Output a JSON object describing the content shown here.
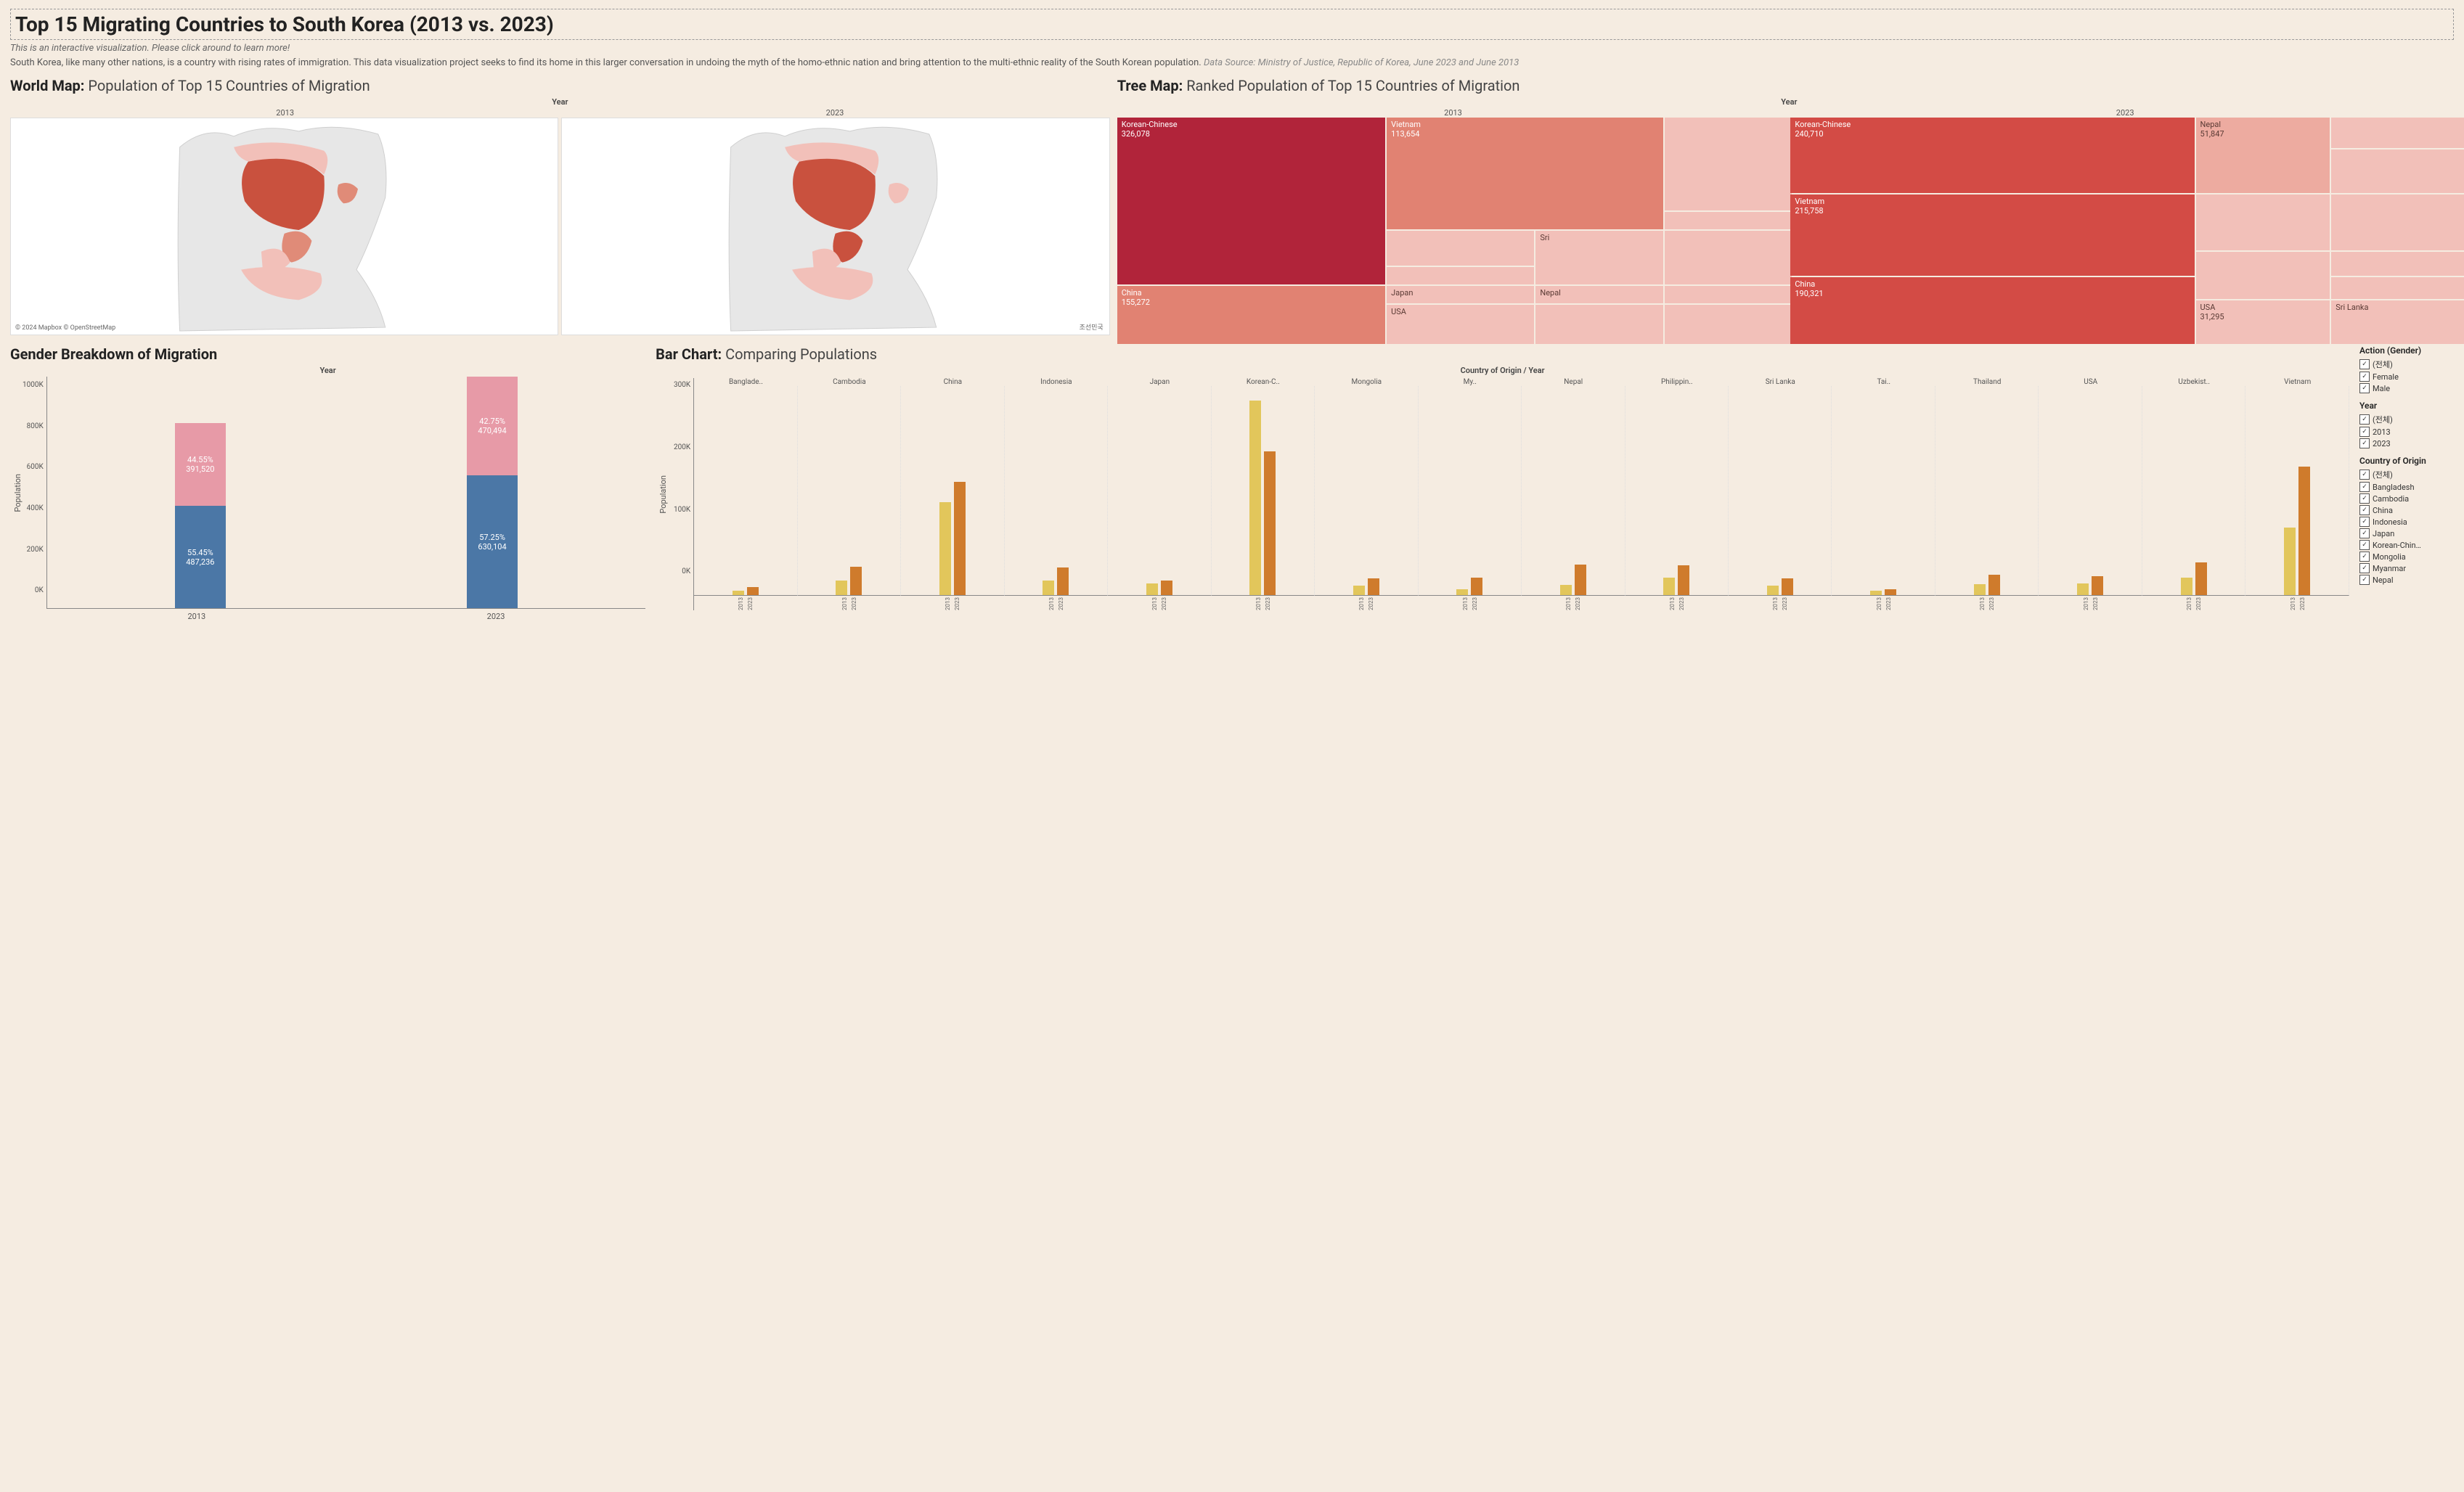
{
  "header": {
    "title": "Top 15 Migrating Countries to South Korea (2013 vs. 2023)",
    "subtitle_italic": "This is an interactive visualization. Please click around to learn more!",
    "description": "South Korea, like many other nations, is a country with rising rates of immigration. This data visualization project seeks to find its home in this larger conversation in undoing the myth of the homo-ethnic nation and bring attention to the multi-ethnic reality of the South Korean population.",
    "data_source": "Data Source: Ministry of Justice, Republic of Korea, June 2023 and June 2013"
  },
  "panels": {
    "world_map": {
      "title_bold": "World Map:",
      "title_rest": " Population of Top 15 Countries of Migration",
      "year_label": "Year",
      "y2013": "2013",
      "y2023": "2023",
      "attrib": "© 2024 Mapbox  © OpenStreetMap",
      "hangul": "조선민국"
    },
    "tree_map": {
      "title_bold": "Tree Map:",
      "title_rest": " Ranked Population of Top 15 Countries of Migration",
      "year_label": "Year",
      "y2013": "2013",
      "y2023": "2023"
    },
    "gender": {
      "title_bold": "Gender Breakdown of Migration",
      "year_label": "Year",
      "axis_label": "Population"
    },
    "bar": {
      "title_bold": "Bar Chart:",
      "title_rest": " Comparing Populations",
      "axis_head": "Country of Origin / Year",
      "axis_label": "Population"
    }
  },
  "map": {
    "background": "#ffffff",
    "land_color": "#e7e7e7",
    "border_color": "#cfcfcf",
    "shade_light": "#f2c0b9",
    "shade_mid": "#e08b78",
    "shade_dark": "#c9513e"
  },
  "treemap": {
    "colors": {
      "darkest": "#b1243a",
      "dark": "#d34b45",
      "mid": "#e18272",
      "light": "#edaba0",
      "lighter": "#f2c0b9"
    },
    "y2013": {
      "kc": {
        "label": "Korean-Chinese",
        "value": "326,078",
        "color": "#b1243a"
      },
      "ch": {
        "label": "China",
        "value": "155,272",
        "color": "#e18272"
      },
      "vn": {
        "label": "Vietnam",
        "value": "113,654",
        "color": "#e18272"
      },
      "jp": {
        "label": "Japan",
        "color": "#f2c0b9"
      },
      "usa": {
        "label": "USA",
        "color": "#f2c0b9"
      },
      "np": {
        "label": "Nepal",
        "color": "#f2c0b9"
      },
      "sri": {
        "label": "Sri",
        "color": "#f2c0b9"
      }
    },
    "y2023": {
      "kc": {
        "label": "Korean-Chinese",
        "value": "240,710",
        "color": "#d34b45"
      },
      "vn": {
        "label": "Vietnam",
        "value": "215,758",
        "color": "#d34b45"
      },
      "ch": {
        "label": "China",
        "value": "190,321",
        "color": "#d34b45"
      },
      "np": {
        "label": "Nepal",
        "value": "51,847",
        "color": "#edaba0"
      },
      "usa": {
        "label": "USA",
        "value": "31,295",
        "color": "#f2c0b9"
      },
      "sri": {
        "label": "Sri Lanka",
        "color": "#f2c0b9"
      }
    }
  },
  "gender": {
    "y_ticks": [
      "0K",
      "200K",
      "400K",
      "600K",
      "800K",
      "1000K"
    ],
    "x": [
      "2013",
      "2023"
    ],
    "max": 1100000,
    "bars": [
      {
        "female_pct": "44.55%",
        "female_val": "391,520",
        "female_n": 391520,
        "male_pct": "55.45%",
        "male_val": "487,236",
        "male_n": 487236
      },
      {
        "female_pct": "42.75%",
        "female_val": "470,494",
        "female_n": 470494,
        "male_pct": "57.25%",
        "male_val": "630,104",
        "male_n": 630104
      }
    ],
    "colors": {
      "female": "#e79aa7",
      "male": "#4b77a6"
    }
  },
  "bar_chart": {
    "y_ticks": [
      "0K",
      "100K",
      "200K",
      "300K"
    ],
    "y_max": 350000,
    "colors": {
      "y2013": "#e2c65b",
      "y2023": "#cf7b2c"
    },
    "countries": [
      {
        "name": "Banglade..",
        "v2013": 8000,
        "v2023": 14000
      },
      {
        "name": "Cambodia",
        "v2013": 24000,
        "v2023": 48000
      },
      {
        "name": "China",
        "v2013": 155272,
        "v2023": 190321
      },
      {
        "name": "Indonesia",
        "v2013": 25000,
        "v2023": 46000
      },
      {
        "name": "Japan",
        "v2013": 20000,
        "v2023": 24000
      },
      {
        "name": "Korean-C..",
        "v2013": 326078,
        "v2023": 240710
      },
      {
        "name": "Mongolia",
        "v2013": 16000,
        "v2023": 28000
      },
      {
        "name": "My..",
        "v2013": 10000,
        "v2023": 30000
      },
      {
        "name": "Nepal",
        "v2013": 17000,
        "v2023": 51847
      },
      {
        "name": "Philippin..",
        "v2013": 30000,
        "v2023": 50000
      },
      {
        "name": "Sri Lanka",
        "v2013": 16000,
        "v2023": 28000
      },
      {
        "name": "Tai..",
        "v2013": 8000,
        "v2023": 10000
      },
      {
        "name": "Thailand",
        "v2013": 18000,
        "v2023": 34000
      },
      {
        "name": "USA",
        "v2013": 20000,
        "v2023": 31295
      },
      {
        "name": "Uzbekist..",
        "v2013": 30000,
        "v2023": 55000
      },
      {
        "name": "Vietnam",
        "v2013": 113654,
        "v2023": 215758
      }
    ]
  },
  "filters": {
    "sections": [
      {
        "title": "Action (Gender)",
        "items": [
          "(전체)",
          "Female",
          "Male"
        ]
      },
      {
        "title": "Year",
        "items": [
          "(전체)",
          "2013",
          "2023"
        ]
      },
      {
        "title": "Country of Origin",
        "items": [
          "(전체)",
          "Bangladesh",
          "Cambodia",
          "China",
          "Indonesia",
          "Japan",
          "Korean-Chin…",
          "Mongolia",
          "Myanmar",
          "Nepal"
        ]
      }
    ]
  }
}
